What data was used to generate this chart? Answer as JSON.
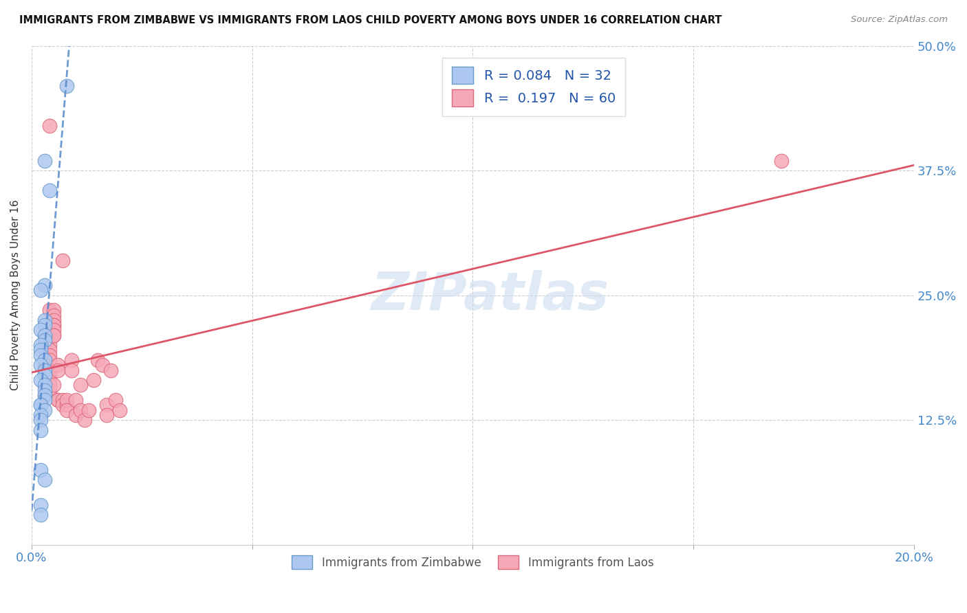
{
  "title": "IMMIGRANTS FROM ZIMBABWE VS IMMIGRANTS FROM LAOS CHILD POVERTY AMONG BOYS UNDER 16 CORRELATION CHART",
  "source": "Source: ZipAtlas.com",
  "ylabel": "Child Poverty Among Boys Under 16",
  "xlim": [
    0.0,
    0.2
  ],
  "ylim": [
    0.0,
    0.5
  ],
  "xticks": [
    0.0,
    0.05,
    0.1,
    0.15,
    0.2
  ],
  "xtick_labels": [
    "0.0%",
    "",
    "",
    "",
    "20.0%"
  ],
  "yticks": [
    0.0,
    0.125,
    0.25,
    0.375,
    0.5
  ],
  "ytick_labels_right": [
    "",
    "12.5%",
    "25.0%",
    "37.5%",
    "50.0%"
  ],
  "watermark": "ZIPatlas",
  "legend_r_zimbabwe": "0.084",
  "legend_n_zimbabwe": "32",
  "legend_r_laos": "0.197",
  "legend_n_laos": "60",
  "zimbabwe_color": "#adc8f0",
  "laos_color": "#f5a8b8",
  "zimbabwe_edge_color": "#6699cc",
  "laos_edge_color": "#dd6677",
  "zimbabwe_line_color": "#5588cc",
  "laos_line_color": "#dd5566",
  "background_color": "#ffffff",
  "grid_color": "#cccccc",
  "tick_label_color": "#4488cc",
  "title_color": "#111111",
  "source_color": "#888888",
  "ylabel_color": "#333333",
  "watermark_color": "#ccddf0",
  "zimbabwe_x": [
    0.008,
    0.003,
    0.004,
    0.003,
    0.002,
    0.003,
    0.003,
    0.002,
    0.003,
    0.003,
    0.002,
    0.002,
    0.002,
    0.003,
    0.002,
    0.003,
    0.003,
    0.002,
    0.003,
    0.003,
    0.003,
    0.003,
    0.002,
    0.002,
    0.003,
    0.002,
    0.002,
    0.002,
    0.002,
    0.003,
    0.002,
    0.002
  ],
  "zimbabwe_y": [
    0.46,
    0.385,
    0.355,
    0.26,
    0.255,
    0.225,
    0.22,
    0.215,
    0.21,
    0.205,
    0.2,
    0.195,
    0.19,
    0.185,
    0.18,
    0.175,
    0.17,
    0.165,
    0.16,
    0.155,
    0.15,
    0.145,
    0.14,
    0.14,
    0.135,
    0.13,
    0.125,
    0.115,
    0.075,
    0.065,
    0.04,
    0.03
  ],
  "laos_x": [
    0.003,
    0.004,
    0.003,
    0.004,
    0.004,
    0.003,
    0.004,
    0.004,
    0.003,
    0.004,
    0.003,
    0.003,
    0.004,
    0.004,
    0.003,
    0.004,
    0.004,
    0.004,
    0.003,
    0.004,
    0.004,
    0.004,
    0.003,
    0.004,
    0.005,
    0.005,
    0.005,
    0.005,
    0.005,
    0.005,
    0.005,
    0.005,
    0.005,
    0.006,
    0.006,
    0.006,
    0.006,
    0.007,
    0.007,
    0.007,
    0.008,
    0.008,
    0.008,
    0.009,
    0.009,
    0.01,
    0.01,
    0.011,
    0.011,
    0.012,
    0.013,
    0.014,
    0.015,
    0.016,
    0.017,
    0.017,
    0.018,
    0.019,
    0.02,
    0.17
  ],
  "laos_y": [
    0.21,
    0.42,
    0.2,
    0.2,
    0.21,
    0.195,
    0.195,
    0.19,
    0.185,
    0.185,
    0.18,
    0.175,
    0.175,
    0.175,
    0.17,
    0.17,
    0.165,
    0.165,
    0.16,
    0.16,
    0.155,
    0.155,
    0.15,
    0.235,
    0.235,
    0.23,
    0.225,
    0.22,
    0.22,
    0.215,
    0.21,
    0.21,
    0.16,
    0.18,
    0.175,
    0.145,
    0.145,
    0.145,
    0.14,
    0.285,
    0.14,
    0.145,
    0.135,
    0.185,
    0.175,
    0.13,
    0.145,
    0.16,
    0.135,
    0.125,
    0.135,
    0.165,
    0.185,
    0.18,
    0.14,
    0.13,
    0.175,
    0.145,
    0.135,
    0.385
  ]
}
